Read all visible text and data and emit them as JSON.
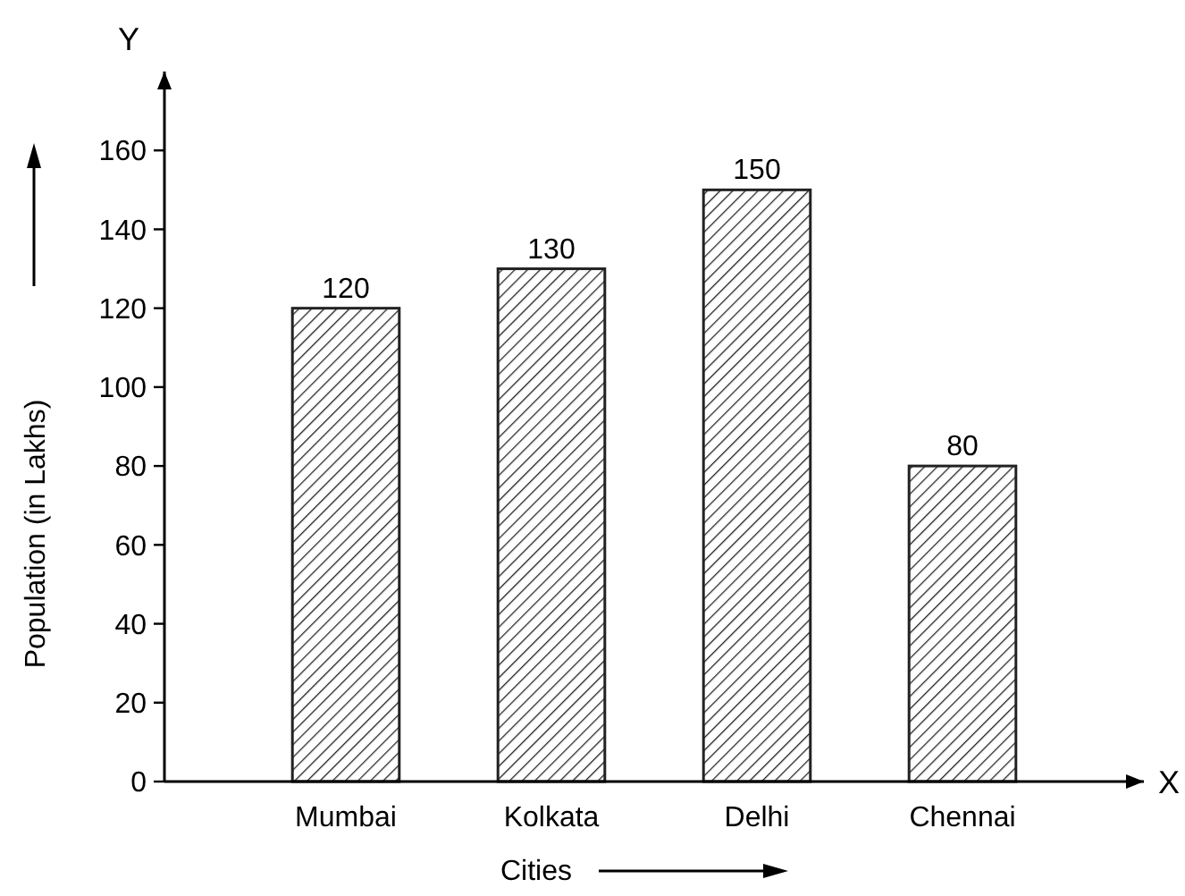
{
  "chart_data": {
    "type": "bar",
    "xlabel": "Cities",
    "ylabel": "Population (in Lakhs)",
    "categories": [
      "Mumbai",
      "Kolkata",
      "Delhi",
      "Chennai"
    ],
    "values": [
      120,
      130,
      150,
      80
    ],
    "color": "#222222",
    "ylim": [
      0,
      180
    ],
    "yticks": [
      0,
      20,
      40,
      60,
      80,
      100,
      120,
      140,
      160
    ],
    "data_labels": true,
    "annotations": [
      "Y",
      "X"
    ]
  }
}
